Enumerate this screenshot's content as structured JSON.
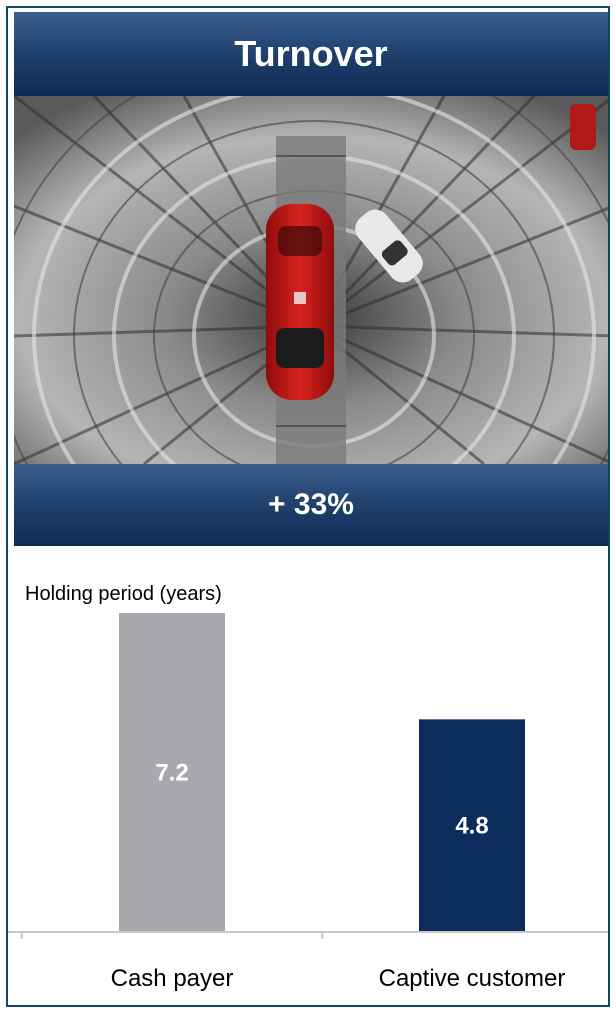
{
  "header": {
    "title": "Turnover"
  },
  "photo": {
    "subject": "red car in circular automated car tower"
  },
  "growth": {
    "label": "+ 33%"
  },
  "chart_data": {
    "type": "bar",
    "title": "Holding period (years)",
    "categories": [
      "Cash payer",
      "Captive customer"
    ],
    "values": [
      7.2,
      4.8
    ],
    "value_labels": [
      "7.2",
      "4.8"
    ],
    "colors": [
      "#a7a9ac",
      "#0c2c5b"
    ],
    "ylim": [
      0,
      7.2
    ],
    "grid": false,
    "legend": "none"
  },
  "colors": {
    "frame": "#0d4a66",
    "band_top": "#3b5f8e",
    "band_bottom": "#0f2b52"
  }
}
